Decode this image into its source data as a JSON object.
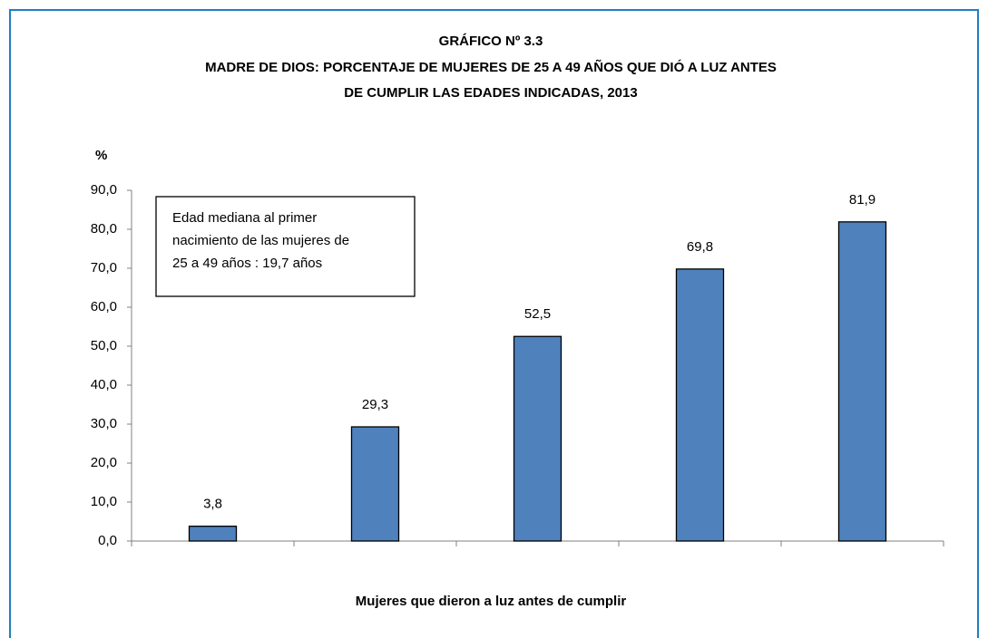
{
  "chart_data": {
    "type": "bar",
    "title": "GRÁFICO Nº 3.3",
    "subtitle": [
      "MADRE DE DIOS: PORCENTAJE DE MUJERES DE 25 A 49 AÑOS QUE DIÓ A LUZ ANTES",
      "DE CUMPLIR LAS EDADES INDICADAS, 2013"
    ],
    "y_label": "%",
    "x_label": "Mujeres que dieron a luz antes de cumplir",
    "annotation": [
      "Edad mediana al primer",
      "nacimiento de las mujeres de",
      "25 a 49 años : 19,7 años"
    ],
    "categories": [
      null,
      null,
      null,
      null,
      null
    ],
    "values": [
      3.8,
      29.3,
      52.5,
      69.8,
      81.9
    ],
    "value_labels": [
      "3,8",
      "29,3",
      "52,5",
      "69,8",
      "81,9"
    ],
    "color": "#4f81bd",
    "ylim": [
      0,
      90
    ],
    "yticks": [
      {
        "value": 0,
        "label": "0,0"
      },
      {
        "value": 10,
        "label": "10,0"
      },
      {
        "value": 20,
        "label": "20,0"
      },
      {
        "value": 30,
        "label": "30,0"
      },
      {
        "value": 40,
        "label": "40,0"
      },
      {
        "value": 50,
        "label": "50,0"
      },
      {
        "value": 60,
        "label": "60,0"
      },
      {
        "value": 70,
        "label": "70,0"
      },
      {
        "value": 80,
        "label": "80,0"
      },
      {
        "value": 90,
        "label": "90,0"
      }
    ],
    "grid": false
  }
}
